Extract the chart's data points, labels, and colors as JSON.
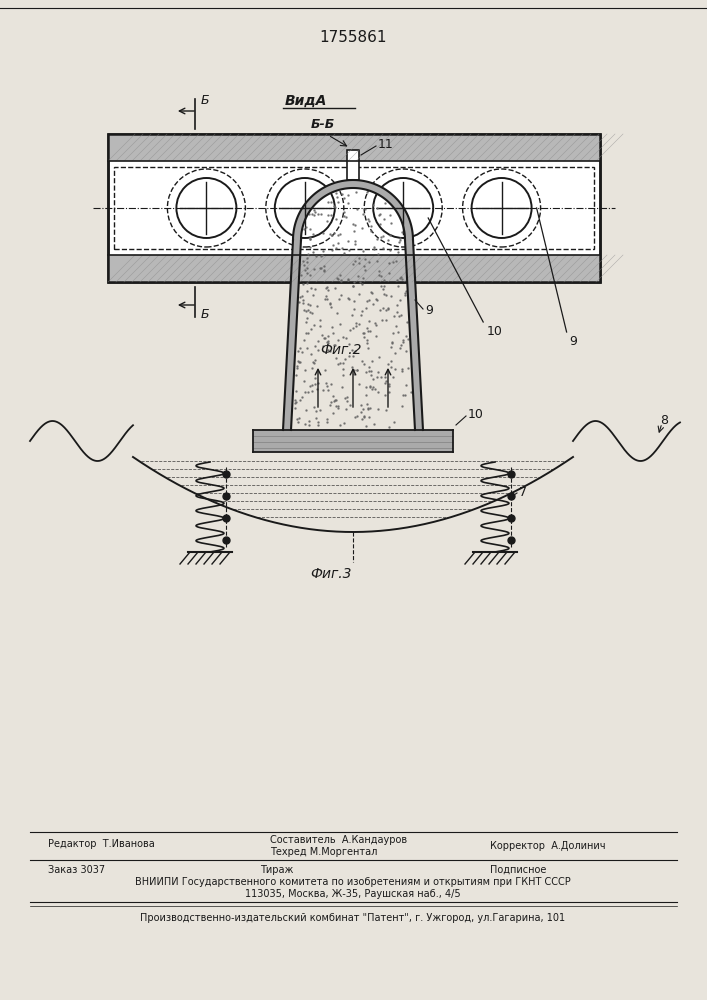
{
  "title": "1755861",
  "fig2_label": "Фиг.2",
  "fig3_label": "Фиг.3",
  "vid_a_label": "ВидА",
  "b_label": "Б",
  "bb_label": "Б-Б",
  "label_9": "9",
  "label_10": "10",
  "label_11": "11",
  "label_7": "7",
  "label_8": "8",
  "bg_color": "#e8e4dc",
  "line_color": "#1a1a1a"
}
